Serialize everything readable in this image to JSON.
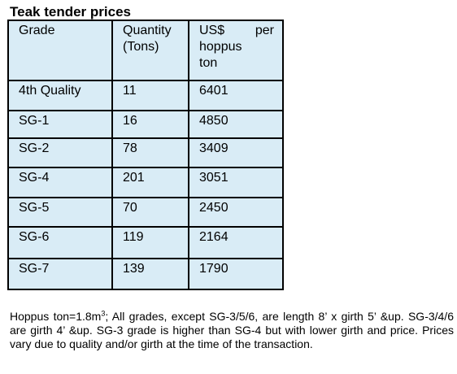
{
  "title": "Teak tender prices",
  "colors": {
    "table_background": "#d9ecf6",
    "border": "#000000",
    "text": "#000000"
  },
  "table": {
    "headers": {
      "grade": "Grade",
      "quantity_line1": "Quantity",
      "quantity_line2": "(Tons)",
      "usd_word1": "US$",
      "usd_word2": "per",
      "usd_line2": "hoppus",
      "usd_line3": "ton"
    },
    "rows": [
      {
        "grade": "4th Quality",
        "quantity": "11",
        "price": "6401"
      },
      {
        "grade": "SG-1",
        "quantity": "16",
        "price": "4850"
      },
      {
        "grade": "SG-2",
        "quantity": "78",
        "price": "3409"
      },
      {
        "grade": "SG-4",
        "quantity": "201",
        "price": "3051"
      },
      {
        "grade": "SG-5",
        "quantity": "70",
        "price": "2450"
      },
      {
        "grade": "SG-6",
        "quantity": "119",
        "price": "2164"
      },
      {
        "grade": "SG-7",
        "quantity": "139",
        "price": "1790"
      }
    ]
  },
  "footnote": {
    "part1": "Hoppus ton=1.8m",
    "superscript": "3",
    "part2": "; All grades, except SG-3/5/6, are length 8’ x girth 5’ &up. SG-3/4/6 are girth 4’ &up. SG-3 grade is higher than SG-4 but with lower girth and price. Prices vary due to quality and/or girth at the time of the transaction."
  }
}
